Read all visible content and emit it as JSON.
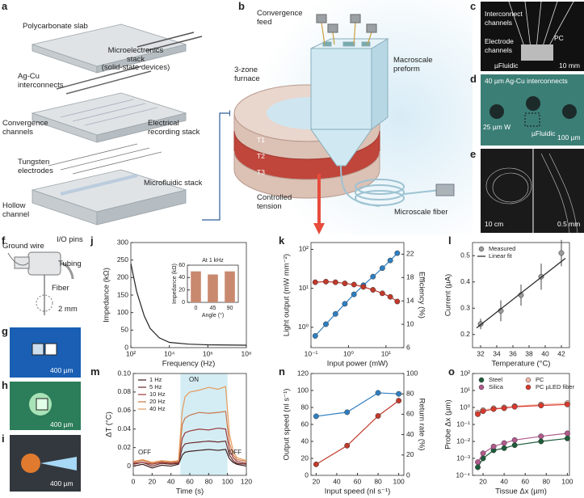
{
  "panel_labels": [
    "a",
    "b",
    "c",
    "d",
    "e",
    "f",
    "g",
    "h",
    "i",
    "j",
    "k",
    "l",
    "m",
    "n",
    "o"
  ],
  "figure_labels": [
    "Polycarbonate slab",
    "Microelectronics\nstack\n(solid-state devices)",
    "Ag-Cu\ninterconnects",
    "Convergence\nchannels",
    "Electrical\nrecording stack",
    "Tungsten\nelectrodes",
    "Hollow\nchannel",
    "Microfluidic stack",
    "Convergence\nfeed",
    "Macroscale\npreform",
    "3-zone\nfurnace",
    "T1",
    "T2",
    "T3",
    "Controlled\ntension",
    "Microscale fiber",
    "Interconnect\nchannels",
    "PC",
    "Electrode\nchannels",
    "µFluidic",
    "10 mm",
    "40 µm Ag-Cu interconnects",
    "25 µm W",
    "µFluidic",
    "100 µm",
    "10 cm",
    "0.5 mm",
    "Ground wire",
    "I/O pins",
    "Tubing",
    "Fiber",
    "2 mm",
    "400 µm",
    "400 µm",
    "400 µm"
  ],
  "chart_data": [
    {
      "type": "line",
      "xlabel": "Frequency (Hz)",
      "ylabel": "Impedance (kΩ)",
      "xlog": true,
      "xlim": [
        100,
        100000000
      ],
      "xticks": [
        {
          "value": 100,
          "label": "10²"
        },
        {
          "value": 10000,
          "label": "10⁴"
        },
        {
          "value": 1000000,
          "label": "10⁶"
        },
        {
          "value": 100000000,
          "label": "10⁸"
        }
      ],
      "ylim": [
        0,
        300
      ],
      "yticks": [
        0,
        50,
        100,
        150,
        200,
        250,
        300
      ],
      "x": [
        100,
        200,
        500,
        1000,
        3000,
        10000,
        100000,
        1000000,
        100000000
      ],
      "series": [
        {
          "color": "#222222",
          "values": [
            240,
            160,
            90,
            55,
            28,
            15,
            10,
            8,
            7
          ]
        }
      ]
    },
    {
      "type": "bar",
      "title": "At 1 kHz",
      "xlabel": "Angle (°)",
      "ylabel": "Impedance (kΩ)",
      "categories": [
        "0",
        "45",
        "90"
      ],
      "values": [
        50,
        45,
        50
      ],
      "color": "#c8896f",
      "ylim": [
        0,
        60
      ],
      "yticks": [
        0,
        20,
        40,
        60
      ]
    },
    {
      "type": "line",
      "xlabel": "Input power (mW)",
      "ylabel": "Light output (mW mm⁻²)",
      "y2label": "Efficiency (%)",
      "xlog": true,
      "ylog": true,
      "xlim": [
        0.1,
        30
      ],
      "xticks": [
        {
          "value": 0.1,
          "label": "10⁻¹"
        },
        {
          "value": 1,
          "label": "10⁰"
        },
        {
          "value": 10,
          "label": "10¹"
        }
      ],
      "ylim": [
        0.3,
        150
      ],
      "yticks": [
        {
          "value": 1,
          "label": "10⁰"
        },
        {
          "value": 10,
          "label": "10¹"
        },
        {
          "value": 100,
          "label": "10²"
        }
      ],
      "y2lim": [
        6,
        24
      ],
      "y2ticks": [
        6,
        10,
        14,
        18,
        22
      ],
      "x": [
        0.13,
        0.25,
        0.45,
        0.8,
        1.4,
        2.5,
        4.5,
        8,
        13,
        20
      ],
      "series": [
        {
          "color": "#2f7fc1",
          "markers": true,
          "values": [
            0.6,
            1.2,
            2.2,
            4,
            7,
            12,
            20,
            33,
            52,
            80
          ]
        },
        {
          "color": "#c0392b",
          "markers": true,
          "axis": "y2",
          "values": [
            17.2,
            17.3,
            17.2,
            17,
            16.8,
            16.4,
            15.9,
            15.3,
            14.7,
            13.9
          ]
        }
      ]
    },
    {
      "type": "scatter",
      "xlabel": "Temperature (°C)",
      "ylabel": "Current (µA)",
      "xlim": [
        31,
        43
      ],
      "xticks": [
        32,
        34,
        36,
        38,
        40,
        42
      ],
      "ylim": [
        0.15,
        0.55
      ],
      "yticks": [
        0.2,
        0.3,
        0.4,
        0.5
      ],
      "legend": "upper left",
      "x": [
        32,
        34.5,
        37,
        39.5,
        42
      ],
      "series": [
        {
          "name": "Measured",
          "color": "#9a9a9a",
          "markers": true,
          "line": false,
          "values": [
            0.24,
            0.29,
            0.35,
            0.42,
            0.51
          ],
          "errors": [
            0.02,
            0.04,
            0.04,
            0.05,
            0.05
          ]
        },
        {
          "name": "Linear fit",
          "color": "#222222",
          "x": [
            31.5,
            42.5
          ],
          "values": [
            0.225,
            0.49
          ]
        }
      ]
    },
    {
      "type": "line",
      "xlabel": "Time (s)",
      "ylabel": "ΔT (°C)",
      "xlim": [
        0,
        120
      ],
      "xticks": [
        0,
        20,
        40,
        60,
        80,
        100,
        120
      ],
      "ylim": [
        -0.01,
        0.1
      ],
      "yticks": [
        0,
        0.02,
        0.04,
        0.06,
        0.08,
        {
          "value": 0.1,
          "label": "0.10"
        }
      ],
      "legend": "upper left",
      "shade": [
        50,
        100
      ],
      "shade_color": "#d4edf4",
      "annotations": [
        "OFF",
        "ON",
        "OFF"
      ],
      "x": [
        0,
        10,
        20,
        30,
        40,
        48,
        52,
        55,
        60,
        70,
        80,
        90,
        98,
        102,
        106,
        110,
        120
      ],
      "series": [
        {
          "name": "1 Hz",
          "color": "#3b1d1d",
          "values": [
            0,
            0.002,
            -0.002,
            0.001,
            0,
            0.002,
            0.012,
            0.015,
            0.016,
            0.017,
            0.018,
            0.017,
            0.018,
            0.008,
            0.004,
            0.002,
            0
          ]
        },
        {
          "name": "5 Hz",
          "color": "#6b2a2a",
          "values": [
            0.002,
            0.004,
            0,
            0.003,
            0.002,
            0.003,
            0.02,
            0.024,
            0.025,
            0.026,
            0.027,
            0.026,
            0.027,
            0.012,
            0.006,
            0.003,
            0.002
          ]
        },
        {
          "name": "10 Hz",
          "color": "#9a3b3b",
          "values": [
            0.003,
            0.004,
            0.002,
            0.004,
            0.003,
            0.004,
            0.03,
            0.036,
            0.038,
            0.04,
            0.039,
            0.041,
            0.04,
            0.018,
            0.009,
            0.005,
            0.003
          ]
        },
        {
          "name": "20 Hz",
          "color": "#c9764a",
          "values": [
            0.004,
            0.006,
            0.003,
            0.005,
            0.004,
            0.005,
            0.045,
            0.052,
            0.055,
            0.058,
            0.057,
            0.058,
            0.059,
            0.025,
            0.012,
            0.007,
            0.005
          ]
        },
        {
          "name": "40 Hz",
          "color": "#e69a5a",
          "values": [
            0.005,
            0.007,
            0.004,
            0.006,
            0.005,
            0.006,
            0.06,
            0.075,
            0.08,
            0.082,
            0.085,
            0.083,
            0.086,
            0.035,
            0.016,
            0.009,
            0.006
          ]
        }
      ]
    },
    {
      "type": "line",
      "xlabel": "Input speed (nl s⁻¹)",
      "ylabel": "Output speed (nl s⁻¹)",
      "y2label": "Return rate (%)",
      "xlim": [
        15,
        105
      ],
      "xticks": [
        20,
        40,
        60,
        80,
        100
      ],
      "ylim": [
        0,
        120
      ],
      "yticks": [
        0,
        20,
        40,
        60,
        80,
        100,
        120
      ],
      "y2lim": [
        0,
        100
      ],
      "y2ticks": [
        0,
        20,
        40,
        60,
        80,
        100
      ],
      "x": [
        20,
        50,
        80,
        100
      ],
      "series": [
        {
          "color": "#2f7fc1",
          "markers": true,
          "axis": "y2",
          "values": [
            58,
            62,
            81,
            80
          ]
        },
        {
          "color": "#c0392b",
          "markers": true,
          "values": [
            13,
            35,
            70,
            88
          ]
        }
      ]
    },
    {
      "type": "line",
      "xlabel": "Tissue Δx (µm)",
      "ylabel": "Probe Δx (µm)",
      "ylog": true,
      "xlim": [
        10,
        102
      ],
      "xticks": [
        20,
        40,
        60,
        80,
        100
      ],
      "ylim": [
        0.0001,
        100
      ],
      "yticks": [
        {
          "value": 0.0001,
          "label": "10⁻⁴"
        },
        {
          "value": 0.001,
          "label": "10⁻³"
        },
        {
          "value": 0.01,
          "label": "10⁻²"
        },
        {
          "value": 0.1,
          "label": "10⁻¹"
        },
        {
          "value": 1,
          "label": "10⁰"
        },
        {
          "value": 10,
          "label": "10¹"
        },
        {
          "value": 100,
          "label": "10²"
        }
      ],
      "legend": "upper center",
      "x": [
        15,
        20,
        30,
        40,
        50,
        75,
        100
      ],
      "series": [
        {
          "name": "Steel",
          "color": "#1e5c3a",
          "markers": true,
          "values": [
            0.0003,
            0.001,
            0.003,
            0.004,
            0.006,
            0.01,
            0.015
          ]
        },
        {
          "name": "PC",
          "color": "#f2b8a8",
          "markers": true,
          "values": [
            0.5,
            0.7,
            0.9,
            1,
            1.2,
            1.5,
            1.8
          ]
        },
        {
          "name": "Silica",
          "color": "#b05a8c",
          "markers": true,
          "values": [
            0.0006,
            0.002,
            0.005,
            0.008,
            0.012,
            0.02,
            0.03
          ]
        },
        {
          "name": "PC µLED fiber",
          "color": "#d93a2e",
          "markers": true,
          "values": [
            0.4,
            0.6,
            0.8,
            0.9,
            1.1,
            1.3,
            1.5
          ]
        }
      ]
    }
  ]
}
